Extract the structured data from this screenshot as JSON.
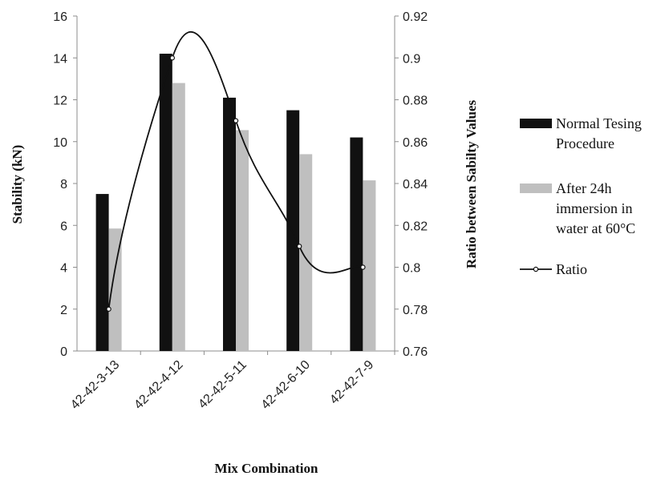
{
  "chart_data": {
    "type": "bar",
    "categories": [
      "42-42-3-13",
      "42-42-4-12",
      "42-42-5-11",
      "42-42-6-10",
      "42-42-7-9"
    ],
    "series": [
      {
        "name": "Normal Tesing Procedure",
        "axis": "left",
        "type": "bar",
        "color": "#111111",
        "values": [
          7.5,
          14.2,
          12.1,
          11.5,
          10.2
        ]
      },
      {
        "name": "After 24h immersion in water at 60°C",
        "axis": "left",
        "type": "bar",
        "color": "#bfbfbf",
        "values": [
          5.85,
          12.8,
          10.55,
          9.4,
          8.15
        ]
      },
      {
        "name": "Ratio",
        "axis": "right",
        "type": "line",
        "color": "#111111",
        "values": [
          0.78,
          0.9,
          0.87,
          0.81,
          0.8
        ]
      }
    ],
    "xlabel": "Mix Combination",
    "ylabel": "Stability (kN)",
    "y2label": "Ratio between Sabilty Values",
    "ylim": [
      0,
      16
    ],
    "yticks": [
      "0",
      "2",
      "4",
      "6",
      "8",
      "10",
      "12",
      "14",
      "16"
    ],
    "y2lim": [
      0.76,
      0.92
    ],
    "y2ticks": [
      "0.76",
      "0.78",
      "0.8",
      "0.82",
      "0.84",
      "0.86",
      "0.88",
      "0.9",
      "0.92"
    ],
    "legend": {
      "placement": "right",
      "entries": [
        {
          "series": 0,
          "lines": [
            "Normal Tesing",
            "Procedure"
          ]
        },
        {
          "series": 1,
          "lines": [
            "After 24h",
            "immersion in",
            "water at 60°C"
          ]
        },
        {
          "series": 2,
          "lines": [
            "Ratio"
          ]
        }
      ]
    },
    "grid": false
  }
}
